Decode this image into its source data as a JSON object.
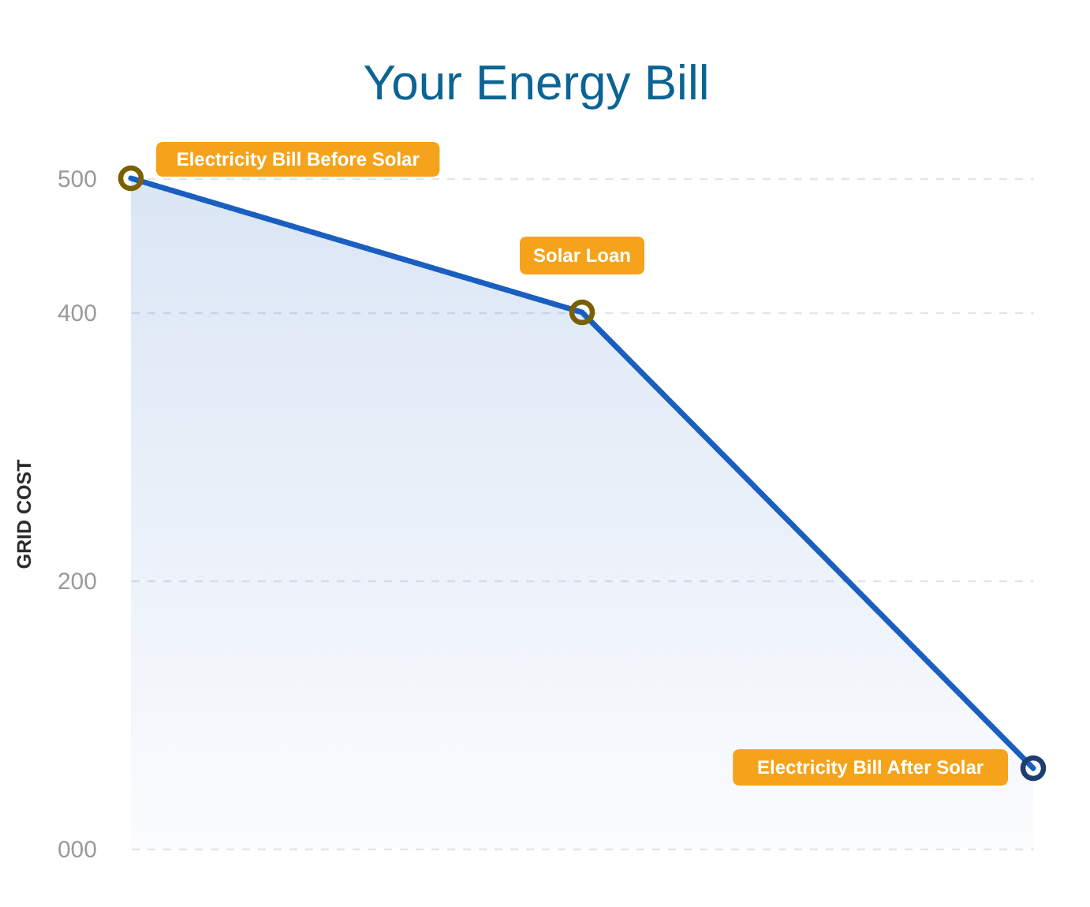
{
  "chart_data": {
    "type": "area",
    "title": "Your Energy Bill",
    "ylabel": "GRID COST",
    "categories": [
      null,
      null,
      null
    ],
    "series": [
      {
        "color": "#1a5fc0",
        "values": [
          500,
          400,
          60
        ]
      },
      {
        "type": "scatter",
        "marker": "circle",
        "colors": [
          "#7a6000",
          "#7a6000",
          "#1f3d6e"
        ],
        "values": [
          500,
          400,
          60
        ]
      }
    ],
    "ylim": [
      0,
      500
    ],
    "yticks": [
      {
        "value": 0,
        "label": "000"
      },
      200,
      400,
      500
    ],
    "grid": "y",
    "annotations": [
      "Electricity Bill Before Solar",
      {
        "text": "Solar Loan",
        "y": 400
      },
      "Electricity Bill After Solar"
    ]
  }
}
